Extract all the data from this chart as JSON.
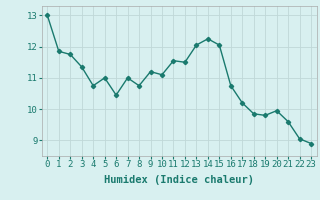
{
  "x": [
    0,
    1,
    2,
    3,
    4,
    5,
    6,
    7,
    8,
    9,
    10,
    11,
    12,
    13,
    14,
    15,
    16,
    17,
    18,
    19,
    20,
    21,
    22,
    23
  ],
  "y": [
    13.0,
    11.85,
    11.75,
    11.35,
    10.75,
    11.0,
    10.45,
    11.0,
    10.75,
    11.2,
    11.1,
    11.55,
    11.5,
    12.05,
    12.25,
    12.05,
    10.75,
    10.2,
    9.85,
    9.8,
    9.95,
    9.6,
    9.05,
    8.9
  ],
  "line_color": "#1a7a6e",
  "marker": "D",
  "marker_size": 2.2,
  "linewidth": 1.0,
  "bg_color": "#d8f0f0",
  "grid_color": "#c0d8d8",
  "xlabel": "Humidex (Indice chaleur)",
  "xlabel_fontsize": 7.5,
  "xtick_labels": [
    "0",
    "1",
    "2",
    "3",
    "4",
    "5",
    "6",
    "7",
    "8",
    "9",
    "10",
    "11",
    "12",
    "13",
    "14",
    "15",
    "16",
    "17",
    "18",
    "19",
    "20",
    "21",
    "22",
    "23"
  ],
  "ytick_labels": [
    "9",
    "10",
    "11",
    "12",
    "13"
  ],
  "yticks": [
    9,
    10,
    11,
    12,
    13
  ],
  "ylim": [
    8.5,
    13.3
  ],
  "xlim": [
    -0.5,
    23.5
  ],
  "tick_fontsize": 6.5
}
